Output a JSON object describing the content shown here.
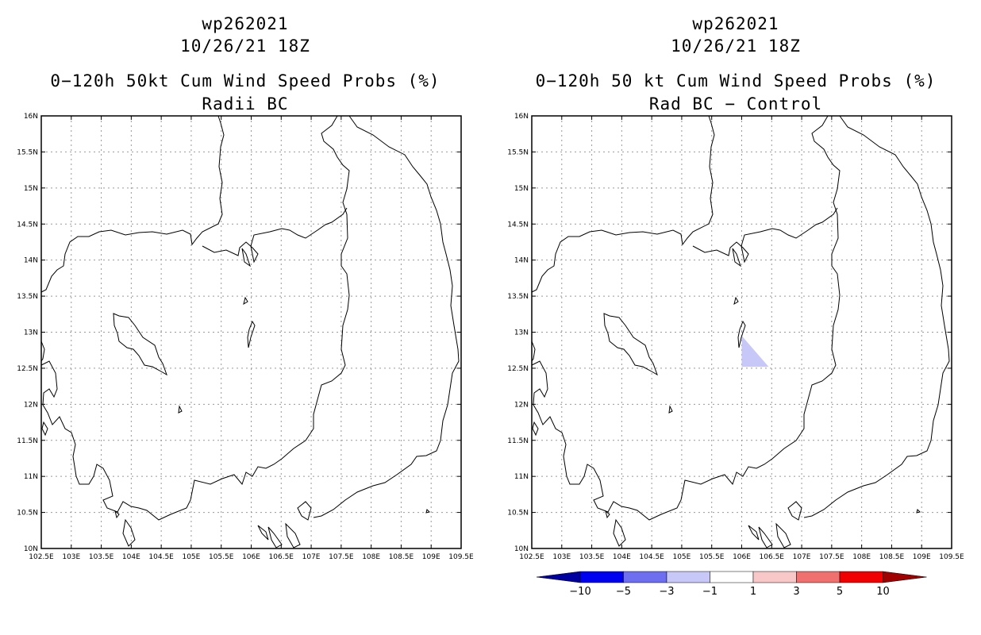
{
  "panels": [
    {
      "id": "left",
      "storm": "wp262021",
      "datetime": "10/26/21 18Z",
      "title": "0−120h 50kt Cum Wind Speed Probs (%)",
      "subtitle": "Radii BC"
    },
    {
      "id": "right",
      "storm": "wp262021",
      "datetime": "10/26/21 18Z",
      "title": "0−120h 50 kt Cum Wind Speed Probs (%)",
      "subtitle": "Rad BC − Control"
    }
  ],
  "axes": {
    "lat_labels": [
      "10N",
      "10.5N",
      "11N",
      "11.5N",
      "12N",
      "12.5N",
      "13N",
      "13.5N",
      "14N",
      "14.5N",
      "15N",
      "15.5N",
      "16N"
    ],
    "lon_labels": [
      "102.5E",
      "103E",
      "103.5E",
      "104E",
      "104.5E",
      "105E",
      "105.5E",
      "106E",
      "106.5E",
      "107E",
      "107.5E",
      "108E",
      "108.5E",
      "109E",
      "109.5E"
    ],
    "lat_range": [
      10,
      16
    ],
    "lon_range": [
      102.5,
      109.5
    ],
    "grid": "dotted"
  },
  "difference_field": {
    "polygon_lonlat": [
      [
        106.0,
        12.95
      ],
      [
        106.0,
        12.52
      ],
      [
        106.45,
        12.52
      ]
    ],
    "color": "#c8c8f8"
  },
  "colorbar": {
    "labels": [
      "−10",
      "−5",
      "−3",
      "−1",
      "1",
      "3",
      "5",
      "10"
    ],
    "colors": [
      "#0000a0",
      "#0000f0",
      "#6e6ef0",
      "#c8c8f8",
      "#ffffff",
      "#f8c8c8",
      "#f07070",
      "#f00000",
      "#a00000"
    ]
  }
}
